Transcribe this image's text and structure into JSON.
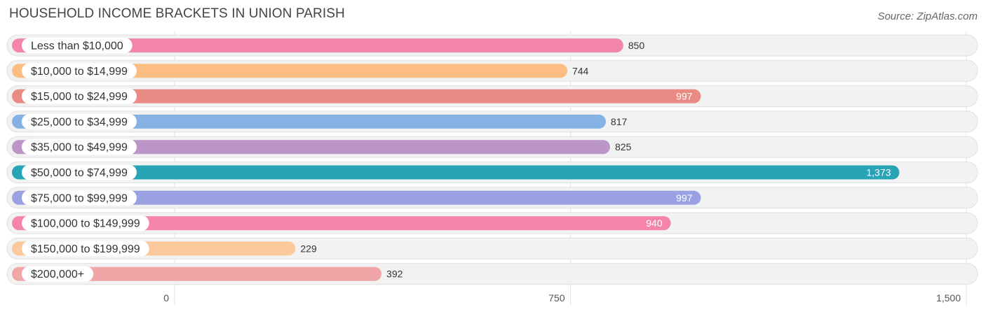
{
  "title": "HOUSEHOLD INCOME BRACKETS IN UNION PARISH",
  "source": "Source: ZipAtlas.com",
  "chart_data": {
    "type": "bar",
    "orientation": "horizontal",
    "categories": [
      "Less than $10,000",
      "$10,000 to $14,999",
      "$15,000 to $24,999",
      "$25,000 to $34,999",
      "$35,000 to $49,999",
      "$50,000 to $74,999",
      "$75,000 to $99,999",
      "$100,000 to $149,999",
      "$150,000 to $199,999",
      "$200,000+"
    ],
    "values": [
      850,
      744,
      997,
      817,
      825,
      1373,
      997,
      940,
      229,
      392
    ],
    "value_labels": [
      "850",
      "744",
      "997",
      "817",
      "825",
      "1,373",
      "997",
      "940",
      "229",
      "392"
    ],
    "colors": [
      "#f385a8",
      "#fbbd82",
      "#e98b84",
      "#84b2e4",
      "#bb96c7",
      "#27a5b7",
      "#9aa1e3",
      "#f585a8",
      "#fbc99c",
      "#f0a6a6"
    ],
    "xlim": [
      0,
      1500
    ],
    "xticks": [
      0,
      750,
      1500
    ],
    "xtick_labels": [
      "0",
      "750",
      "1,500"
    ],
    "grid": true
  }
}
